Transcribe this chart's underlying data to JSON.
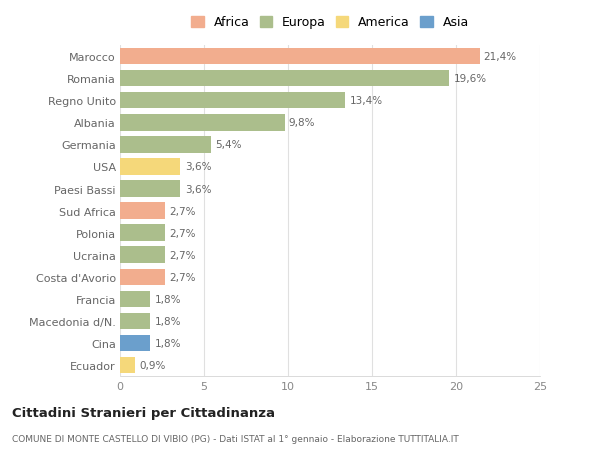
{
  "countries": [
    "Marocco",
    "Romania",
    "Regno Unito",
    "Albania",
    "Germania",
    "USA",
    "Paesi Bassi",
    "Sud Africa",
    "Polonia",
    "Ucraina",
    "Costa d'Avorio",
    "Francia",
    "Macedonia d/N.",
    "Cina",
    "Ecuador"
  ],
  "values": [
    21.4,
    19.6,
    13.4,
    9.8,
    5.4,
    3.6,
    3.6,
    2.7,
    2.7,
    2.7,
    2.7,
    1.8,
    1.8,
    1.8,
    0.9
  ],
  "labels": [
    "21,4%",
    "19,6%",
    "13,4%",
    "9,8%",
    "5,4%",
    "3,6%",
    "3,6%",
    "2,7%",
    "2,7%",
    "2,7%",
    "2,7%",
    "1,8%",
    "1,8%",
    "1,8%",
    "0,9%"
  ],
  "continents": [
    "Africa",
    "Europa",
    "Europa",
    "Europa",
    "Europa",
    "America",
    "Europa",
    "Africa",
    "Europa",
    "Europa",
    "Africa",
    "Europa",
    "Europa",
    "Asia",
    "America"
  ],
  "colors": {
    "Africa": "#F2AD8E",
    "Europa": "#ABBE8C",
    "America": "#F5D87A",
    "Asia": "#6B9FCC"
  },
  "legend_order": [
    "Africa",
    "Europa",
    "America",
    "Asia"
  ],
  "title": "Cittadini Stranieri per Cittadinanza",
  "subtitle": "COMUNE DI MONTE CASTELLO DI VIBIO (PG) - Dati ISTAT al 1° gennaio - Elaborazione TUTTITALIA.IT",
  "xlim": [
    0,
    25
  ],
  "xticks": [
    0,
    5,
    10,
    15,
    20,
    25
  ],
  "background_color": "#ffffff",
  "bar_height": 0.75,
  "grid_color": "#e0e0e0"
}
